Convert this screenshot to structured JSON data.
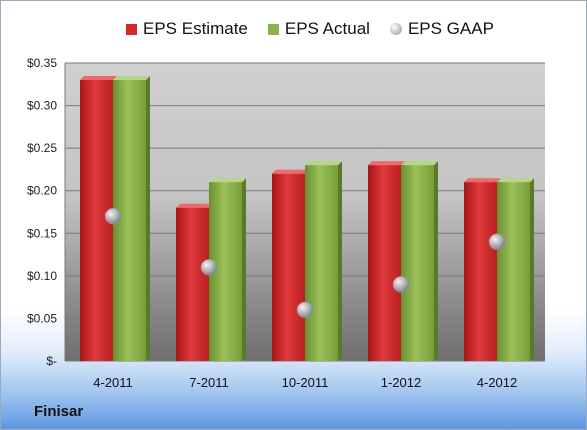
{
  "company": "Finisar",
  "colors": {
    "estimate": "#d42a2c",
    "actual": "#8ab348",
    "gaap": "#b9bec6"
  },
  "chart_data": {
    "type": "bar",
    "categories": [
      "4-2011",
      "7-2011",
      "10-2011",
      "1-2012",
      "4-2012"
    ],
    "series": [
      {
        "name": "EPS Estimate",
        "type": "bar",
        "values": [
          0.33,
          0.18,
          0.22,
          0.23,
          0.21
        ]
      },
      {
        "name": "EPS Actual",
        "type": "bar",
        "values": [
          0.33,
          0.21,
          0.23,
          0.23,
          0.21
        ]
      },
      {
        "name": "EPS GAAP",
        "type": "scatter",
        "values": [
          0.17,
          0.11,
          0.06,
          0.09,
          0.14
        ]
      }
    ],
    "ylim": [
      0,
      0.35
    ],
    "yticks": [
      0,
      0.05,
      0.1,
      0.15,
      0.2,
      0.25,
      0.3,
      0.35
    ],
    "ytick_labels": [
      "$-",
      "$0.05",
      "$0.10",
      "$0.15",
      "$0.20",
      "$0.25",
      "$0.30",
      "$0.35"
    ],
    "legend_position": "top",
    "grid": true
  }
}
